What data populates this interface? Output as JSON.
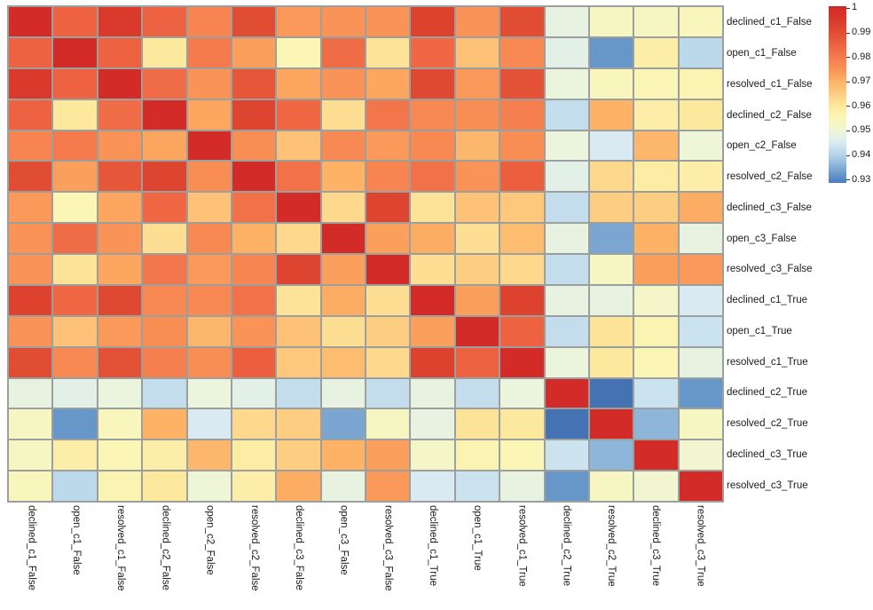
{
  "figure": {
    "background": "#ffffff",
    "text_color": "#1a1a1a",
    "grid_line_color": "#9b9f9e"
  },
  "chart_data": {
    "type": "heatmap",
    "title": "",
    "description": "Correlation matrix heatmap of ticket-status features, 16x16, symmetric, diagonal = 1",
    "labels": [
      "declined_c1_False",
      "open_c1_False",
      "resolved_c1_False",
      "declined_c2_False",
      "open_c2_False",
      "resolved_c2_False",
      "declined_c3_False",
      "open_c3_False",
      "resolved_c3_False",
      "declined_c1_True",
      "open_c1_True",
      "resolved_c1_True",
      "declined_c2_True",
      "resolved_c2_True",
      "declined_c3_True",
      "resolved_c3_True"
    ],
    "x_labels_same_as_y": true,
    "matrix": [
      [
        1.0,
        0.985,
        0.995,
        0.985,
        0.978,
        0.99,
        0.974,
        0.975,
        0.975,
        0.993,
        0.975,
        0.99,
        0.948,
        0.953,
        0.953,
        0.954
      ],
      [
        0.985,
        1.0,
        0.985,
        0.96,
        0.98,
        0.973,
        0.955,
        0.983,
        0.961,
        0.984,
        0.967,
        0.977,
        0.947,
        0.932,
        0.958,
        0.941
      ],
      [
        0.995,
        0.985,
        1.0,
        0.983,
        0.975,
        0.988,
        0.972,
        0.975,
        0.972,
        0.991,
        0.974,
        0.989,
        0.949,
        0.954,
        0.955,
        0.956
      ],
      [
        0.985,
        0.96,
        0.983,
        1.0,
        0.972,
        0.992,
        0.984,
        0.962,
        0.981,
        0.977,
        0.976,
        0.979,
        0.942,
        0.97,
        0.958,
        0.96
      ],
      [
        0.978,
        0.98,
        0.975,
        0.972,
        1.0,
        0.976,
        0.967,
        0.977,
        0.974,
        0.977,
        0.969,
        0.976,
        0.949,
        0.945,
        0.969,
        0.95
      ],
      [
        0.99,
        0.973,
        0.988,
        0.992,
        0.976,
        1.0,
        0.982,
        0.97,
        0.978,
        0.982,
        0.975,
        0.986,
        0.947,
        0.963,
        0.959,
        0.958
      ],
      [
        0.974,
        0.955,
        0.972,
        0.984,
        0.967,
        0.982,
        1.0,
        0.963,
        0.992,
        0.961,
        0.967,
        0.966,
        0.942,
        0.965,
        0.965,
        0.971
      ],
      [
        0.975,
        0.983,
        0.975,
        0.962,
        0.977,
        0.97,
        0.963,
        1.0,
        0.973,
        0.971,
        0.962,
        0.968,
        0.948,
        0.934,
        0.97,
        0.948
      ],
      [
        0.975,
        0.961,
        0.972,
        0.981,
        0.974,
        0.978,
        0.992,
        0.973,
        1.0,
        0.962,
        0.965,
        0.963,
        0.942,
        0.953,
        0.973,
        0.974
      ],
      [
        0.993,
        0.984,
        0.991,
        0.977,
        0.977,
        0.982,
        0.961,
        0.971,
        0.962,
        1.0,
        0.973,
        0.993,
        0.948,
        0.948,
        0.952,
        0.945
      ],
      [
        0.975,
        0.967,
        0.974,
        0.976,
        0.969,
        0.975,
        0.967,
        0.962,
        0.965,
        0.973,
        1.0,
        0.985,
        0.942,
        0.961,
        0.956,
        0.943
      ],
      [
        0.99,
        0.977,
        0.989,
        0.979,
        0.976,
        0.986,
        0.966,
        0.968,
        0.963,
        0.993,
        0.985,
        1.0,
        0.949,
        0.96,
        0.955,
        0.948
      ],
      [
        0.948,
        0.947,
        0.949,
        0.942,
        0.949,
        0.947,
        0.942,
        0.948,
        0.942,
        0.948,
        0.942,
        0.949,
        1.0,
        0.927,
        0.943,
        0.932
      ],
      [
        0.953,
        0.932,
        0.954,
        0.97,
        0.945,
        0.963,
        0.965,
        0.934,
        0.953,
        0.948,
        0.961,
        0.96,
        0.927,
        1.0,
        0.936,
        0.953
      ],
      [
        0.953,
        0.958,
        0.955,
        0.958,
        0.969,
        0.959,
        0.965,
        0.97,
        0.973,
        0.952,
        0.956,
        0.955,
        0.943,
        0.936,
        1.0,
        0.951
      ],
      [
        0.954,
        0.941,
        0.956,
        0.96,
        0.95,
        0.958,
        0.971,
        0.948,
        0.974,
        0.945,
        0.943,
        0.948,
        0.932,
        0.953,
        0.951,
        1.0
      ]
    ],
    "vmin": 0.927,
    "vmax": 1.0,
    "grid_on": true,
    "legend_position": "top-right",
    "colorbar": {
      "tick_labels": [
        "1",
        "0.99",
        "0.98",
        "0.97",
        "0.96",
        "0.95",
        "0.94",
        "0.93"
      ],
      "tick_values": [
        1.0,
        0.99,
        0.98,
        0.97,
        0.96,
        0.95,
        0.94,
        0.93
      ],
      "display_top_value": 1.0007,
      "display_bottom_value": 0.9286
    },
    "colorscale": {
      "name": "RdYlBu_r",
      "anchors": [
        [
          0.927,
          "#4472b2"
        ],
        [
          0.93,
          "#5586c1"
        ],
        [
          0.935,
          "#83aed5"
        ],
        [
          0.94,
          "#b5d5e9"
        ],
        [
          0.945,
          "#d9eaf3"
        ],
        [
          0.9475,
          "#e6f1e4"
        ],
        [
          0.95,
          "#eff6d7"
        ],
        [
          0.955,
          "#fbf6b6"
        ],
        [
          0.96,
          "#fde99e"
        ],
        [
          0.965,
          "#fdcd82"
        ],
        [
          0.97,
          "#fdb266"
        ],
        [
          0.975,
          "#fa9357"
        ],
        [
          0.98,
          "#f57a4d"
        ],
        [
          0.985,
          "#ed6341"
        ],
        [
          0.99,
          "#e14d33"
        ],
        [
          0.995,
          "#d93a2b"
        ],
        [
          1.0,
          "#d32b27"
        ],
        [
          1.0007,
          "#c22722"
        ]
      ]
    }
  }
}
